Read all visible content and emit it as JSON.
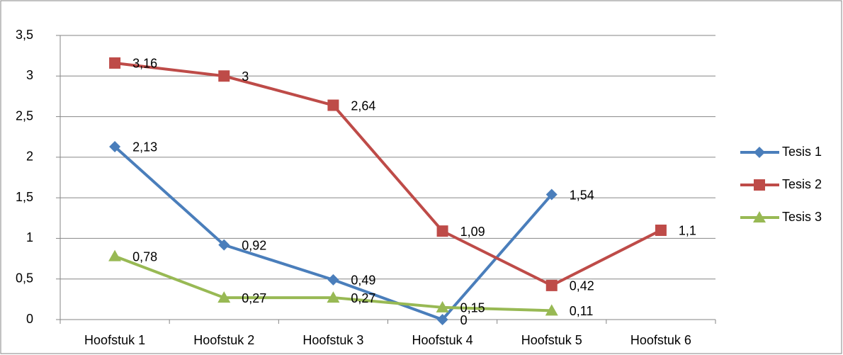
{
  "chart_data": {
    "type": "line",
    "categories": [
      "Hoofstuk 1",
      "Hoofstuk 2",
      "Hoofstuk 3",
      "Hoofstuk 4",
      "Hoofstuk 5",
      "Hoofstuk 6"
    ],
    "series": [
      {
        "name": "Tesis 1",
        "color": "#4a7ebb",
        "marker": "diamond",
        "values": [
          2.13,
          0.92,
          0.49,
          0,
          1.54,
          null
        ],
        "value_labels": [
          "2,13",
          "0,92",
          "0,49",
          "0",
          "1,54",
          null
        ]
      },
      {
        "name": "Tesis 2",
        "color": "#be4b48",
        "marker": "square",
        "values": [
          3.16,
          3,
          2.64,
          1.09,
          0.42,
          1.1
        ],
        "value_labels": [
          "3,16",
          "3",
          "2,64",
          "1,09",
          "0,42",
          "1,1"
        ]
      },
      {
        "name": "Tesis 3",
        "color": "#98b954",
        "marker": "triangle",
        "values": [
          0.78,
          0.27,
          0.27,
          0.15,
          0.11,
          null
        ],
        "value_labels": [
          "0,78",
          "0,27",
          "0,27",
          "0,15",
          "0,11",
          null
        ]
      }
    ],
    "ylim": [
      0,
      3.5
    ],
    "yticks": [
      0,
      {
        "value": 0.5,
        "label": "0,5"
      },
      1,
      {
        "value": 1.5,
        "label": "1,5"
      },
      2,
      {
        "value": 2.5,
        "label": "2,5"
      },
      3,
      {
        "value": 3.5,
        "label": "3,5"
      }
    ],
    "grid": true,
    "legend": "right"
  }
}
